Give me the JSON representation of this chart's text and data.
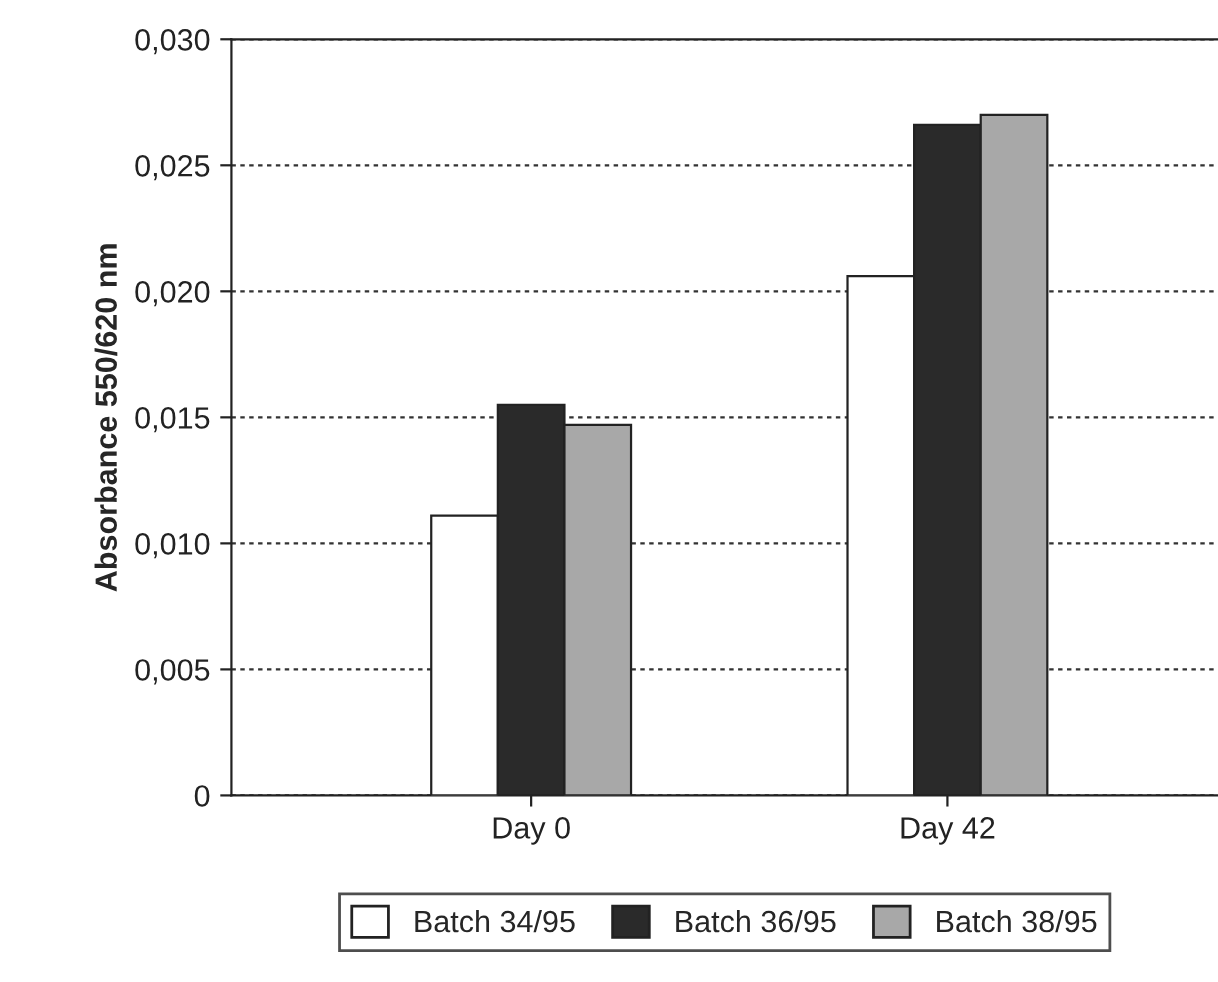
{
  "chart_data": {
    "type": "bar",
    "ylabel": "Absorbance 550/620 nm",
    "categories": [
      "Day 0",
      "Day 42"
    ],
    "series": [
      {
        "name": "Batch 34/95",
        "color": "#ffffff",
        "values": [
          0.0111,
          0.0206
        ]
      },
      {
        "name": "Batch 36/95",
        "color": "#2a2a2a",
        "values": [
          0.0155,
          0.0266
        ]
      },
      {
        "name": "Batch 38/95",
        "color": "#a8a8a8",
        "values": [
          0.0147,
          0.027
        ]
      }
    ],
    "ylim": [
      0,
      0.03
    ],
    "yticks": [
      0,
      {
        "value": 0.005,
        "label": "0,005"
      },
      {
        "value": 0.01,
        "label": "0,010"
      },
      {
        "value": 0.015,
        "label": "0,015"
      },
      {
        "value": 0.02,
        "label": "0,020"
      },
      {
        "value": 0.025,
        "label": "0,025"
      },
      {
        "value": 0.03,
        "label": "0,030"
      }
    ],
    "grid": "y",
    "legend": "bottom"
  }
}
